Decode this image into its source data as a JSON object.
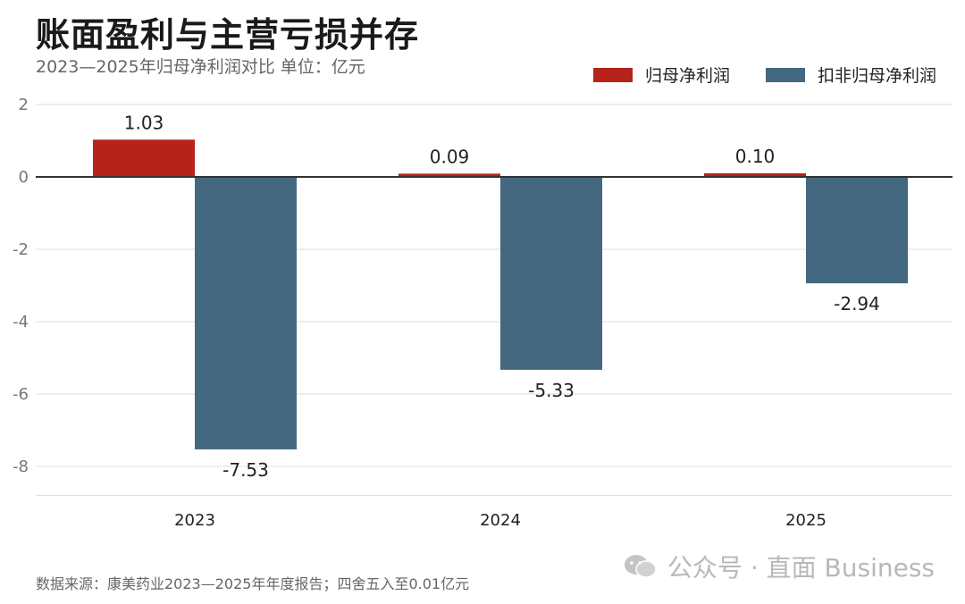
{
  "title": "账面盈利与主营亏损并存",
  "subtitle": "2023—2025年归母净利润对比  单位：亿元",
  "footer": "数据来源：康美药业2023—2025年年度报告；四舍五入至0.01亿元",
  "watermark": "公众号 · 直面 Business",
  "colors": {
    "series1": "#b5231b",
    "series2": "#436880",
    "grid": "#dddddd",
    "axis": "#333333",
    "tick": "#777777"
  },
  "chart_data": {
    "type": "bar",
    "title": "账面盈利与主营亏损并存",
    "subtitle": "2023—2025年归母净利润对比  单位：亿元",
    "categories": [
      "2023",
      "2024",
      "2025"
    ],
    "series": [
      {
        "name": "归母净利润",
        "values": [
          1.03,
          0.09,
          0.1
        ],
        "labels": [
          "1.03",
          "0.09",
          "0.10"
        ]
      },
      {
        "name": "扣非归母净利润",
        "values": [
          -7.53,
          -5.33,
          -2.94
        ],
        "labels": [
          "-7.53",
          "-5.33",
          "-2.94"
        ]
      }
    ],
    "yticks": [
      "2",
      "0",
      "-2",
      "-4",
      "-6",
      "-8"
    ],
    "ylim": [
      -8.8,
      2
    ],
    "grid": true,
    "legend": "top-right"
  }
}
